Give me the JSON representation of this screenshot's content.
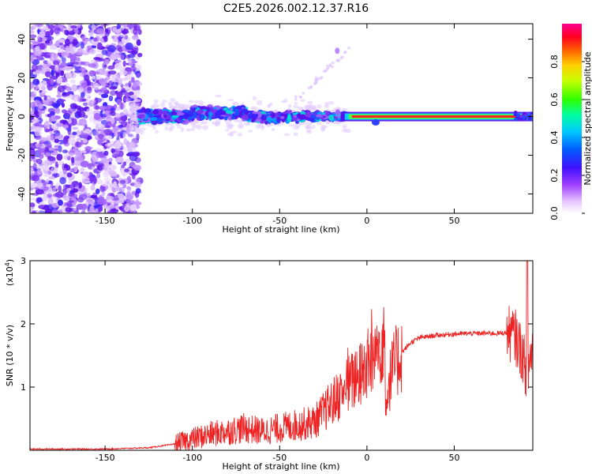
{
  "title": "C2E5.2026.002.12.37.R16",
  "chart_data": [
    {
      "type": "heatmap",
      "name": "spectrogram",
      "xlabel": "Height of straight line (km)",
      "ylabel": "Frequency (Hz)",
      "xlim": [
        -193,
        95
      ],
      "ylim": [
        -50,
        48
      ],
      "xticks": [
        -150,
        -100,
        -50,
        0,
        50
      ],
      "xtick_labels": [
        "-150",
        "-100",
        "-50",
        "0",
        "50"
      ],
      "yticks": [
        -40,
        -20,
        0,
        20,
        40
      ],
      "ytick_labels": [
        "-40",
        "-20",
        "0",
        "20",
        "40"
      ],
      "colorbar": {
        "label": "Normalized spectral amplitude",
        "range": [
          0,
          1
        ],
        "ticks": [
          0.0,
          0.2,
          0.4,
          0.6,
          0.8
        ],
        "tick_labels": [
          "0.0",
          "0.2",
          "0.4",
          "0.6",
          "0.8"
        ]
      },
      "description_segments": [
        {
          "x_range": [
            -193,
            -130
          ],
          "freq_spread": 48,
          "amplitude": 0.15
        },
        {
          "x_range": [
            -130,
            -15
          ],
          "freq_spread": 6,
          "amplitude": 0.35
        },
        {
          "x_range": [
            -15,
            95
          ],
          "freq_spread": 1.5,
          "amplitude": 0.95
        }
      ]
    },
    {
      "type": "line",
      "name": "snr",
      "xlabel": "Height of straight line (km)",
      "ylabel": "SNR (10 * v/v)",
      "multiplier": "(x10",
      "multiplier_exp": "4",
      "multiplier_close": ")",
      "xlim": [
        -193,
        95
      ],
      "ylim": [
        0,
        3
      ],
      "xticks": [
        -150,
        -100,
        -50,
        0,
        50
      ],
      "xtick_labels": [
        "-150",
        "-100",
        "-50",
        "0",
        "50"
      ],
      "yticks": [
        1,
        2,
        3
      ],
      "ytick_labels": [
        "1",
        "2",
        "3"
      ],
      "series": [
        {
          "name": "SNR",
          "color": "#ee2222",
          "x": [
            -193,
            -150,
            -125,
            -110,
            -100,
            -90,
            -80,
            -70,
            -60,
            -50,
            -40,
            -30,
            -25,
            -20,
            -15,
            -10,
            -5,
            0,
            5,
            8,
            10,
            11,
            12,
            15,
            20,
            25,
            30,
            40,
            50,
            60,
            70,
            75,
            80,
            85,
            88,
            90,
            92,
            95
          ],
          "values": [
            0.02,
            0.02,
            0.04,
            0.1,
            0.18,
            0.25,
            0.3,
            0.35,
            0.3,
            0.35,
            0.4,
            0.45,
            0.6,
            0.75,
            0.9,
            1.05,
            1.15,
            1.35,
            1.5,
            1.7,
            1.9,
            0.5,
            1.0,
            1.3,
            1.55,
            1.7,
            1.78,
            1.82,
            1.84,
            1.85,
            1.85,
            1.85,
            1.86,
            1.8,
            1.6,
            1.4,
            1.2,
            1.7
          ]
        }
      ]
    }
  ],
  "colors": {
    "snr_line": "#ee2222",
    "ridge": "#ff2020",
    "axis": "#000000"
  }
}
